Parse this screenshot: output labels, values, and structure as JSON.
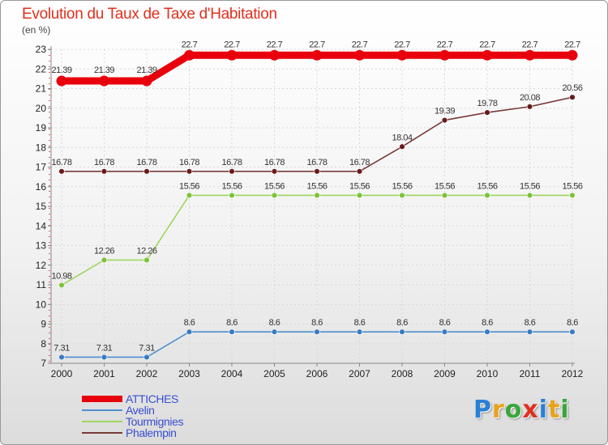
{
  "title": "Evolution du Taux de Taxe d'Habitation",
  "unit": "(en %)",
  "logo": {
    "letters": [
      "P",
      "r",
      "o",
      "x",
      "i",
      "t",
      "i"
    ],
    "colors": [
      "#2a7fd4",
      "#e8a21a",
      "#3aa63a",
      "#e03020",
      "#2a7fd4",
      "#e8a21a",
      "#3aa63a"
    ]
  },
  "chart_data": {
    "type": "line",
    "title": "Evolution du Taux de Taxe d'Habitation",
    "ylabel": "(en %)",
    "xlabel": "",
    "ylim": [
      7,
      23
    ],
    "categories": [
      "2000",
      "2001",
      "2002",
      "2003",
      "2004",
      "2005",
      "2006",
      "2007",
      "2008",
      "2009",
      "2010",
      "2011",
      "2012"
    ],
    "yticks": [
      "7",
      "8",
      "9",
      "10",
      "11",
      "12",
      "13",
      "14",
      "15",
      "16",
      "17",
      "18",
      "19",
      "20",
      "21",
      "22",
      "23"
    ],
    "series": [
      {
        "name": "ATTICHES",
        "color": "#e8000d",
        "bold": true,
        "values": [
          21.39,
          21.39,
          21.39,
          22.7,
          22.7,
          22.7,
          22.7,
          22.7,
          22.7,
          22.7,
          22.7,
          22.7,
          22.7
        ],
        "labels": [
          "21.39",
          "21.39",
          "21.39",
          "22.7",
          "22.7",
          "22.7",
          "22.7",
          "22.7",
          "22.7",
          "22.7",
          "22.7",
          "22.7",
          "22.7"
        ]
      },
      {
        "name": "Avelin",
        "color": "#4f8fcf",
        "point": "#3a7ac0",
        "bold": false,
        "values": [
          7.31,
          7.31,
          7.31,
          8.6,
          8.6,
          8.6,
          8.6,
          8.6,
          8.6,
          8.6,
          8.6,
          8.6,
          8.6
        ],
        "labels": [
          "7.31",
          "7.31",
          "7.31",
          "8.6",
          "8.6",
          "8.6",
          "8.6",
          "8.6",
          "8.6",
          "8.6",
          "8.6",
          "8.6",
          "8.6"
        ]
      },
      {
        "name": "Tourmignies",
        "color": "#9ed65f",
        "point": "#7dc23a",
        "bold": false,
        "values": [
          10.98,
          12.26,
          12.26,
          15.56,
          15.56,
          15.56,
          15.56,
          15.56,
          15.56,
          15.56,
          15.56,
          15.56,
          15.56
        ],
        "labels": [
          "10.98",
          "12.26",
          "12.26",
          "15.56",
          "15.56",
          "15.56",
          "15.56",
          "15.56",
          "15.56",
          "15.56",
          "15.56",
          "15.56",
          "15.56"
        ]
      },
      {
        "name": "Phalempin",
        "color": "#7a3a3a",
        "point": "#6a1a1a",
        "bold": false,
        "values": [
          16.78,
          16.78,
          16.78,
          16.78,
          16.78,
          16.78,
          16.78,
          16.78,
          18.04,
          19.39,
          19.78,
          20.08,
          20.56
        ],
        "labels": [
          "16.78",
          "16.78",
          "16.78",
          "16.78",
          "16.78",
          "16.78",
          "16.78",
          "16.78",
          "18.04",
          "19.39",
          "19.78",
          "20.08",
          "20.56"
        ]
      }
    ]
  }
}
